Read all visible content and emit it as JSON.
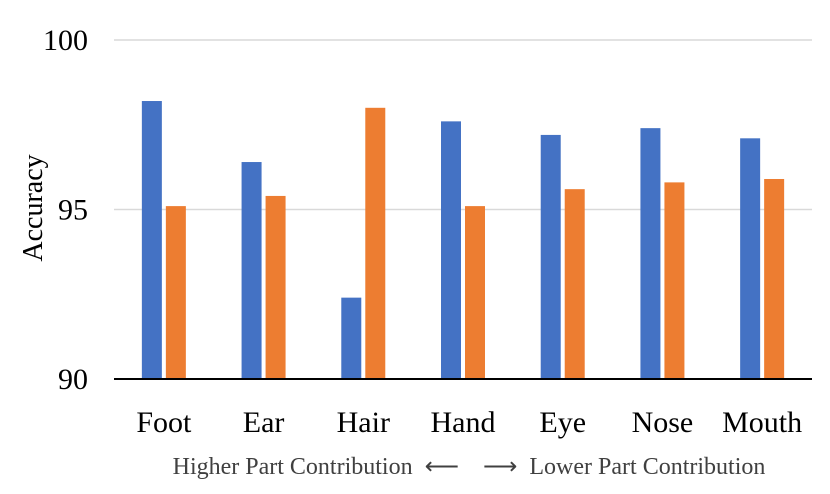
{
  "chart_data": {
    "type": "bar",
    "categories": [
      "Foot",
      "Ear",
      "Hair",
      "Hand",
      "Eye",
      "Nose",
      "Mouth"
    ],
    "series": [
      {
        "color": "#4472C4",
        "values": [
          98.2,
          96.4,
          92.4,
          97.6,
          97.2,
          97.4,
          97.1
        ]
      },
      {
        "color": "#ED7D31",
        "values": [
          95.1,
          95.4,
          98.0,
          95.1,
          95.6,
          95.8,
          95.9
        ]
      }
    ],
    "ylabel": "Accuracy",
    "ylim": [
      90,
      100
    ],
    "yticks": [
      "90",
      "95",
      "100"
    ],
    "x_caption": "Higher Part Contribution  ⟵    ⟶  Lower Part Contribution",
    "grid": true,
    "legend": "none"
  }
}
